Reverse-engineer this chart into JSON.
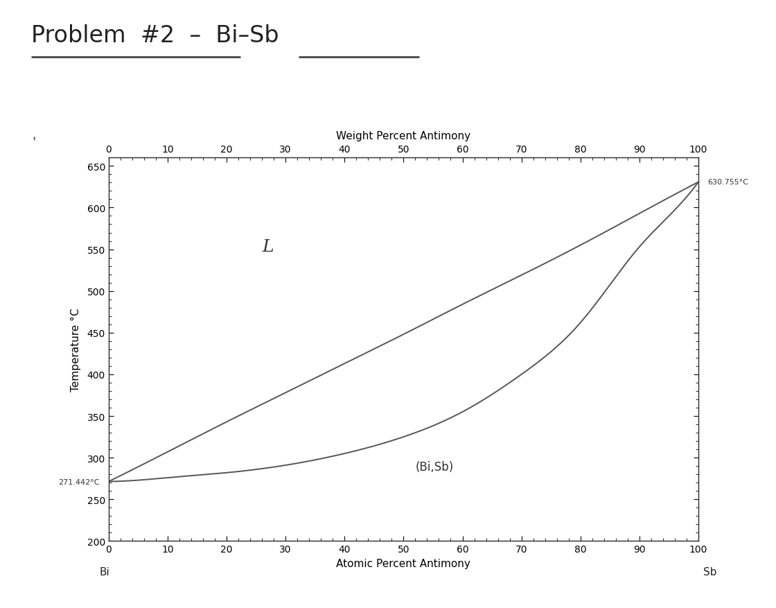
{
  "top_xlabel": "Weight Percent Antimony",
  "bottom_xlabel": "Atomic Percent Antimony",
  "ylabel": "Temperature °C",
  "ylim": [
    200,
    660
  ],
  "xlim": [
    0,
    100
  ],
  "yticks": [
    200,
    250,
    300,
    350,
    400,
    450,
    500,
    550,
    600,
    650
  ],
  "xticks_bottom": [
    0,
    10,
    20,
    30,
    40,
    50,
    60,
    70,
    80,
    90,
    100
  ],
  "xticks_top": [
    0,
    10,
    20,
    30,
    40,
    50,
    60,
    70,
    80,
    90,
    100
  ],
  "bi_melting_point": 271.442,
  "sb_melting_point": 630.755,
  "bi_label": "271.442°C",
  "sb_label": "630.755°C",
  "L_label": "L",
  "solid_label": "(Bi,Sb)",
  "liquidus_x": [
    0,
    10,
    20,
    30,
    40,
    50,
    60,
    70,
    80,
    90,
    100
  ],
  "liquidus_y": [
    271.442,
    307,
    343,
    378,
    413,
    448,
    484,
    519,
    555,
    593,
    630.755
  ],
  "solidus_x": [
    0,
    5,
    10,
    15,
    20,
    30,
    40,
    50,
    60,
    70,
    80,
    90,
    95,
    100
  ],
  "solidus_y": [
    271.442,
    273,
    276,
    279,
    282,
    291,
    305,
    325,
    355,
    400,
    462,
    553,
    590,
    630.755
  ],
  "line_color": "#555555",
  "background_color": "#ffffff",
  "fig_bg_color": "#ffffff"
}
